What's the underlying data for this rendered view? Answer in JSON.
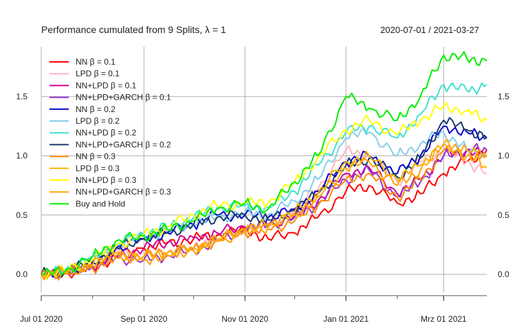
{
  "chart_data": {
    "type": "line",
    "title": "Performance cumulated from 9 Splits, λ = 1",
    "date_range": "2020-07-01 / 2021-03-27",
    "xlabel": "",
    "ylabel": "",
    "x_ticks": [
      "Jul 01 2020",
      "Sep 01 2020",
      "Nov 01 2020",
      "Jan 01 2021",
      "Mrz 01 2021"
    ],
    "x_tick_dates": [
      "2020-07-01",
      "2020-09-01",
      "2020-11-01",
      "2021-01-01",
      "2021-03-01"
    ],
    "x_range": [
      "2020-07-01",
      "2021-03-27"
    ],
    "y_ticks": [
      0.0,
      0.5,
      1.0,
      1.5
    ],
    "y_tick_labels": [
      "0.0",
      "0.5",
      "1.0",
      "1.5"
    ],
    "ylim": [
      -0.18,
      1.92
    ],
    "grid": true,
    "legend_position": "top-left",
    "x": [
      "2020-07-01",
      "2020-07-15",
      "2020-08-01",
      "2020-08-15",
      "2020-09-01",
      "2020-09-15",
      "2020-10-01",
      "2020-10-15",
      "2020-11-01",
      "2020-11-15",
      "2020-12-01",
      "2020-12-15",
      "2021-01-01",
      "2021-01-15",
      "2021-02-01",
      "2021-02-15",
      "2021-03-01",
      "2021-03-15",
      "2021-03-27"
    ],
    "series": [
      {
        "name": "NN β = 0.1",
        "color": "#ff0000",
        "values": [
          0.0,
          0.01,
          0.05,
          0.15,
          0.22,
          0.26,
          0.3,
          0.33,
          0.38,
          0.3,
          0.35,
          0.48,
          0.7,
          0.75,
          0.6,
          0.68,
          0.85,
          0.95,
          1.05
        ]
      },
      {
        "name": "LPD β = 0.1",
        "color": "#ffb6c1",
        "values": [
          0.0,
          0.02,
          0.08,
          0.2,
          0.15,
          0.18,
          0.22,
          0.3,
          0.35,
          0.4,
          0.55,
          0.72,
          1.05,
          1.0,
          0.78,
          0.95,
          1.05,
          0.95,
          0.85
        ]
      },
      {
        "name": "NN+LPD β = 0.1",
        "color": "#cc0099",
        "values": [
          0.0,
          0.02,
          0.06,
          0.15,
          0.22,
          0.27,
          0.31,
          0.35,
          0.4,
          0.42,
          0.5,
          0.62,
          0.85,
          0.9,
          0.68,
          0.8,
          1.0,
          1.05,
          1.0
        ]
      },
      {
        "name": "NN+LPD+GARCH β = 0.1",
        "color": "#9933cc",
        "values": [
          0.0,
          0.02,
          0.06,
          0.14,
          0.12,
          0.16,
          0.2,
          0.28,
          0.38,
          0.42,
          0.48,
          0.6,
          0.8,
          0.88,
          0.65,
          0.78,
          1.0,
          1.05,
          1.05
        ]
      },
      {
        "name": "NN β = 0.2",
        "color": "#0000cc",
        "values": [
          0.0,
          0.02,
          0.1,
          0.22,
          0.3,
          0.35,
          0.42,
          0.5,
          0.5,
          0.48,
          0.55,
          0.7,
          0.95,
          1.0,
          0.85,
          1.0,
          1.25,
          1.2,
          1.15
        ]
      },
      {
        "name": "LPD β = 0.2",
        "color": "#87ceeb",
        "values": [
          0.0,
          0.03,
          0.15,
          0.25,
          0.32,
          0.36,
          0.42,
          0.48,
          0.52,
          0.5,
          0.62,
          0.8,
          1.15,
          1.2,
          1.0,
          1.1,
          1.2,
          1.05,
          1.0
        ]
      },
      {
        "name": "NN+LPD β = 0.2",
        "color": "#40e0d0",
        "values": [
          0.0,
          0.03,
          0.15,
          0.25,
          0.34,
          0.4,
          0.48,
          0.56,
          0.58,
          0.56,
          0.7,
          0.92,
          1.2,
          1.25,
          1.15,
          1.35,
          1.6,
          1.55,
          1.6
        ]
      },
      {
        "name": "NN+LPD+GARCH β = 0.2",
        "color": "#1a3a6b",
        "values": [
          0.0,
          0.02,
          0.1,
          0.22,
          0.3,
          0.35,
          0.42,
          0.48,
          0.5,
          0.46,
          0.54,
          0.68,
          0.92,
          0.98,
          0.82,
          0.98,
          1.3,
          1.22,
          1.15
        ]
      },
      {
        "name": "NN β = 0.3",
        "color": "#ff8c00",
        "values": [
          0.0,
          0.01,
          0.05,
          0.14,
          0.15,
          0.18,
          0.22,
          0.28,
          0.36,
          0.38,
          0.45,
          0.58,
          0.8,
          0.85,
          0.65,
          0.8,
          1.05,
          1.0,
          1.0
        ]
      },
      {
        "name": "LPD β = 0.3",
        "color": "#ffb000",
        "values": [
          0.0,
          0.02,
          0.08,
          0.18,
          0.15,
          0.18,
          0.22,
          0.3,
          0.38,
          0.42,
          0.52,
          0.68,
          0.95,
          1.0,
          0.8,
          0.92,
          1.1,
          1.0,
          0.9
        ]
      },
      {
        "name": "NN+LPD β = 0.3",
        "color": "#ffff00",
        "values": [
          0.0,
          0.03,
          0.12,
          0.24,
          0.34,
          0.4,
          0.5,
          0.58,
          0.6,
          0.6,
          0.78,
          0.98,
          1.22,
          1.3,
          1.18,
          1.3,
          1.42,
          1.38,
          1.3
        ]
      },
      {
        "name": "NN+LPD+GARCH β = 0.3",
        "color": "#ffa500",
        "values": [
          0.0,
          0.02,
          0.08,
          0.16,
          0.12,
          0.16,
          0.2,
          0.28,
          0.36,
          0.4,
          0.5,
          0.65,
          0.9,
          0.95,
          0.75,
          0.88,
          1.1,
          1.05,
          1.0
        ]
      },
      {
        "name": "Buy and Hold",
        "color": "#00ee00",
        "values": [
          0.0,
          0.02,
          0.15,
          0.28,
          0.32,
          0.38,
          0.45,
          0.55,
          0.6,
          0.55,
          0.78,
          1.0,
          1.5,
          1.4,
          1.3,
          1.5,
          1.85,
          1.82,
          1.8
        ]
      }
    ]
  }
}
